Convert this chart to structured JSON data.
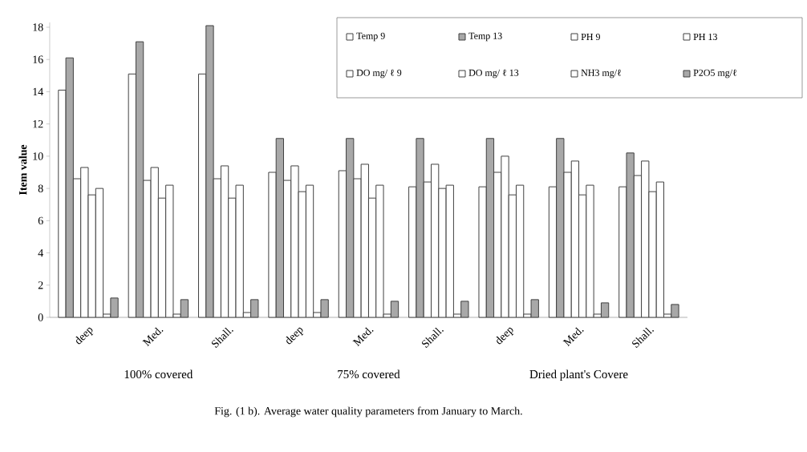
{
  "chart_data": {
    "type": "bar",
    "ylabel": "Item value",
    "categories": [
      "deep",
      "Med.",
      "Shall.",
      "deep",
      "Med.",
      "Shall.",
      "deep",
      "Med.",
      "Shall."
    ],
    "series": [
      {
        "name": "Temp 9",
        "color": "#ffffff",
        "values": [
          14.1,
          15.1,
          15.1,
          9.0,
          9.1,
          8.1,
          8.1,
          8.1,
          8.1
        ]
      },
      {
        "name": "Temp 13",
        "color": "#a8a8a8",
        "values": [
          16.1,
          17.1,
          18.1,
          11.1,
          11.1,
          11.1,
          11.1,
          11.1,
          10.2
        ]
      },
      {
        "name": "PH 9",
        "color": "#ffffff",
        "values": [
          8.6,
          8.5,
          8.6,
          8.5,
          8.6,
          8.4,
          9.0,
          9.0,
          8.8
        ]
      },
      {
        "name": "PH 13",
        "color": "#ffffff",
        "values": [
          9.3,
          9.3,
          9.4,
          9.4,
          9.5,
          9.5,
          10.0,
          9.7,
          9.7
        ]
      },
      {
        "name": "DO mg/ ℓ 9",
        "color": "#ffffff",
        "values": [
          7.6,
          7.4,
          7.4,
          7.8,
          7.4,
          8.0,
          7.6,
          7.6,
          7.8
        ]
      },
      {
        "name": "DO mg/ ℓ 13",
        "color": "#ffffff",
        "values": [
          8.0,
          8.2,
          8.2,
          8.2,
          8.2,
          8.2,
          8.2,
          8.2,
          8.4
        ]
      },
      {
        "name": "NH3 mg/ℓ",
        "color": "#ffffff",
        "values": [
          0.2,
          0.2,
          0.3,
          0.3,
          0.2,
          0.2,
          0.2,
          0.2,
          0.2
        ]
      },
      {
        "name": "P2O5 mg/ℓ",
        "color": "#a8a8a8",
        "values": [
          1.2,
          1.1,
          1.1,
          1.1,
          1.0,
          1.0,
          1.1,
          0.9,
          0.8
        ]
      }
    ],
    "ylim": [
      0,
      18.3
    ],
    "yticks": [
      0,
      2,
      4,
      6,
      8,
      10,
      12,
      14,
      16,
      18
    ],
    "legend": "top right",
    "annotations": [
      "100% covered",
      "75% covered",
      "Dried plant's Covere",
      "Fig. (1 b). Average water quality parameters from January to March."
    ]
  }
}
